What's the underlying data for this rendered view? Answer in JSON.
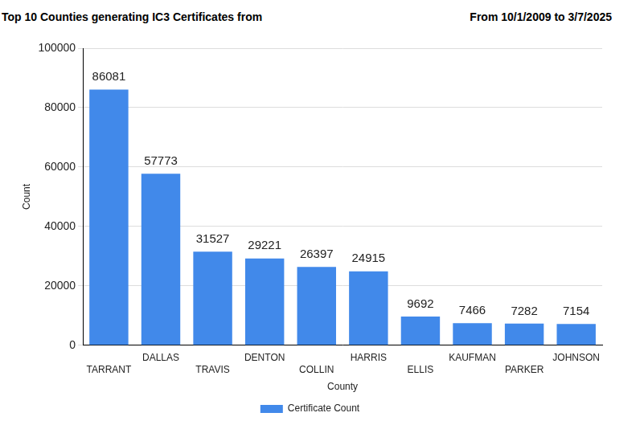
{
  "chart_data": {
    "type": "bar",
    "title": "Top 10 Counties generating IC3 Certificates from",
    "subtitle": "From 10/1/2009 to 3/7/2025",
    "x_label": "County",
    "y_label": "Count",
    "categories": [
      "TARRANT",
      "DALLAS",
      "TRAVIS",
      "DENTON",
      "COLLIN",
      "HARRIS",
      "ELLIS",
      "KAUFMAN",
      "PARKER",
      "JOHNSON"
    ],
    "series": [
      {
        "name": "Certificate Count",
        "color": "#4189ea",
        "values": [
          86081,
          57773,
          31527,
          29221,
          26397,
          24915,
          9692,
          7466,
          7282,
          7154
        ]
      }
    ],
    "ylim": [
      0,
      100000
    ],
    "yticks": [
      0,
      20000,
      40000,
      60000,
      80000,
      100000
    ],
    "grid": true,
    "legend": "bottom",
    "data_labels": true
  }
}
